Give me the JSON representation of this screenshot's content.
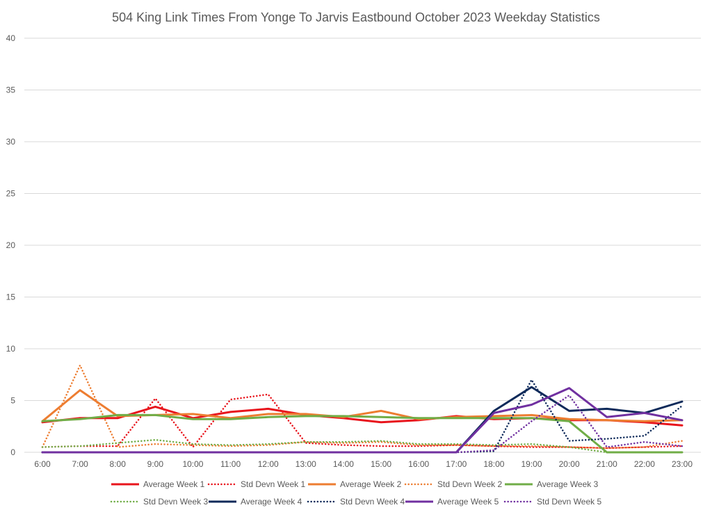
{
  "chart_data": {
    "type": "line",
    "title": "504 King Link Times From Yonge To Jarvis Eastbound October 2023 Weekday Statistics",
    "xlabel": "",
    "ylabel": "",
    "ylim": [
      0,
      40
    ],
    "yticks": [
      0,
      5,
      10,
      15,
      20,
      25,
      30,
      35,
      40
    ],
    "grid": "horizontal",
    "legend_position": "bottom",
    "categories": [
      "6:00",
      "7:00",
      "8:00",
      "9:00",
      "10:00",
      "11:00",
      "12:00",
      "13:00",
      "14:00",
      "15:00",
      "16:00",
      "17:00",
      "18:00",
      "19:00",
      "20:00",
      "21:00",
      "22:00",
      "23:00"
    ],
    "series": [
      {
        "name": "Average Week 1",
        "color": "#e8141c",
        "style": "solid",
        "values": [
          2.9,
          3.3,
          3.3,
          4.4,
          3.3,
          3.9,
          4.2,
          3.6,
          3.3,
          2.9,
          3.1,
          3.5,
          3.2,
          3.3,
          3.1,
          3.1,
          2.9,
          2.6
        ]
      },
      {
        "name": "Std Devn Week 1",
        "color": "#e8141c",
        "style": "dotted",
        "values": [
          0.5,
          0.6,
          0.6,
          5.2,
          0.5,
          5.1,
          5.6,
          0.9,
          0.7,
          0.6,
          0.6,
          0.7,
          0.6,
          0.5,
          0.5,
          0.4,
          0.5,
          0.6
        ]
      },
      {
        "name": "Average Week 2",
        "color": "#ed7d31",
        "style": "solid",
        "values": [
          3.0,
          6.0,
          3.5,
          3.6,
          3.7,
          3.3,
          3.7,
          3.7,
          3.4,
          4.0,
          3.2,
          3.4,
          3.5,
          3.6,
          3.2,
          3.1,
          3.0,
          3.1
        ]
      },
      {
        "name": "Std Devn Week 2",
        "color": "#ed7d31",
        "style": "dotted",
        "values": [
          0.5,
          8.4,
          0.5,
          0.8,
          0.7,
          0.6,
          0.7,
          1.0,
          0.9,
          1.0,
          0.7,
          0.7,
          0.6,
          0.6,
          0.5,
          0.4,
          0.5,
          1.1
        ]
      },
      {
        "name": "Average Week 3",
        "color": "#70ad47",
        "style": "solid",
        "values": [
          3.0,
          3.2,
          3.6,
          3.6,
          3.2,
          3.2,
          3.4,
          3.5,
          3.5,
          3.4,
          3.3,
          3.3,
          3.3,
          3.3,
          3.0,
          0.0,
          0.0,
          0.0
        ]
      },
      {
        "name": "Std Devn Week 3",
        "color": "#70ad47",
        "style": "dotted",
        "values": [
          0.5,
          0.6,
          0.9,
          1.2,
          0.8,
          0.7,
          0.8,
          1.0,
          1.0,
          1.1,
          0.8,
          0.8,
          0.7,
          0.8,
          0.5,
          0.0,
          0.0,
          0.0
        ]
      },
      {
        "name": "Average Week 4",
        "color": "#0e2a5a",
        "style": "solid",
        "values": [
          0,
          0,
          0,
          0,
          0,
          0,
          0,
          0,
          0,
          0,
          0,
          0,
          4.0,
          6.3,
          4.0,
          4.2,
          3.8,
          4.9
        ]
      },
      {
        "name": "Std Devn Week 4",
        "color": "#0e2a5a",
        "style": "dotted",
        "values": [
          0,
          0,
          0,
          0,
          0,
          0,
          0,
          0,
          0,
          0,
          0,
          0,
          0.1,
          7.0,
          1.1,
          1.3,
          1.6,
          4.5
        ]
      },
      {
        "name": "Average Week 5",
        "color": "#7030a0",
        "style": "solid",
        "values": [
          0,
          0,
          0,
          0,
          0,
          0,
          0,
          0,
          0,
          0,
          0,
          0,
          3.8,
          4.6,
          6.2,
          3.4,
          3.8,
          3.1
        ]
      },
      {
        "name": "Std Devn Week 5",
        "color": "#7030a0",
        "style": "dotted",
        "values": [
          0,
          0,
          0,
          0,
          0,
          0,
          0,
          0,
          0,
          0,
          0,
          0,
          0.2,
          3.0,
          5.5,
          0.5,
          1.0,
          0.6
        ]
      }
    ]
  }
}
